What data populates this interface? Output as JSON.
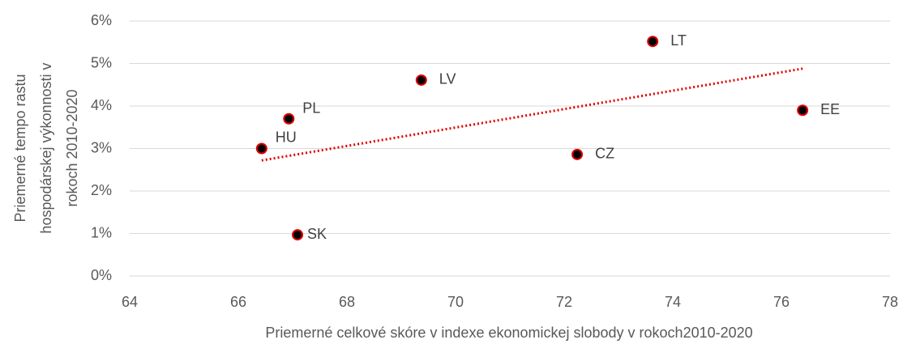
{
  "chart_data": {
    "type": "scatter",
    "x_label": "Priemerné celkové skóre v indexe ekonomickej slobody v rokoch2010-2020",
    "y_label": [
      "Priemerné tempo rastu",
      "hospodárskej výkonnosti v",
      "rokoch  2010-2020"
    ],
    "categories": [
      "HU",
      "PL",
      "SK",
      "LV",
      "CZ",
      "LT",
      "EE"
    ],
    "x": [
      66.43,
      66.93,
      67.09,
      69.37,
      72.24,
      73.63,
      76.39
    ],
    "values": [
      3.0,
      3.7,
      0.97,
      4.61,
      2.86,
      5.52,
      3.9
    ],
    "color": "#000000",
    "edge_color": "#e00000",
    "trendline": {
      "x": [
        66.43,
        76.39
      ],
      "y": [
        2.72,
        4.88
      ],
      "color": "#e00000"
    },
    "xlim": [
      64,
      78
    ],
    "xticks": [
      64,
      66,
      68,
      70,
      72,
      74,
      76,
      78
    ],
    "ylim": [
      0,
      6
    ],
    "yticks": [
      {
        "value": 0,
        "label": "0%"
      },
      {
        "value": 1,
        "label": "1%"
      },
      {
        "value": 2,
        "label": "2%"
      },
      {
        "value": 3,
        "label": "3%"
      },
      {
        "value": 4,
        "label": "4%"
      },
      {
        "value": 5,
        "label": "5%"
      },
      {
        "value": 6,
        "label": "6%"
      }
    ],
    "grid": true
  }
}
